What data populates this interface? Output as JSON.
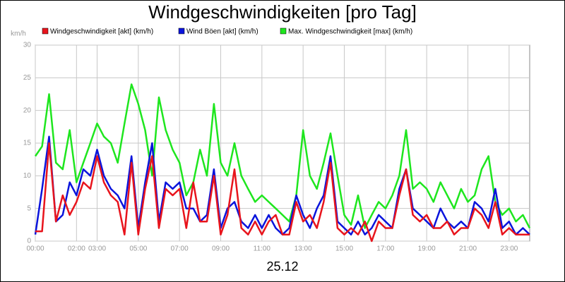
{
  "chart_data": {
    "type": "line",
    "title": "Windgeschwindigkeiten [pro Tag]",
    "y_label": "km/h",
    "x_label": "25.12",
    "x": [
      0,
      0.33,
      0.67,
      1,
      1.33,
      1.67,
      2,
      2.33,
      2.67,
      3,
      3.33,
      3.67,
      4,
      4.33,
      4.67,
      5,
      5.33,
      5.67,
      6,
      6.33,
      6.67,
      7,
      7.33,
      7.67,
      8,
      8.33,
      8.67,
      9,
      9.33,
      9.67,
      10,
      10.33,
      10.67,
      11,
      11.33,
      11.67,
      12,
      12.33,
      12.67,
      13,
      13.33,
      13.67,
      14,
      14.33,
      14.67,
      15,
      15.33,
      15.67,
      16,
      16.33,
      16.67,
      17,
      17.33,
      17.67,
      18,
      18.33,
      18.67,
      19,
      19.33,
      19.67,
      20,
      20.33,
      20.67,
      21,
      21.33,
      21.67,
      22,
      22.33,
      22.67,
      23,
      23.33,
      23.67,
      24
    ],
    "series": [
      {
        "name": "Windgeschwindigkeit [akt] (km/h)",
        "color": "#e8141c",
        "values": [
          1.5,
          1.5,
          15,
          3,
          7,
          4,
          6,
          9,
          8,
          13,
          9,
          7,
          6,
          1,
          12,
          1,
          8,
          13,
          2,
          8,
          7,
          8,
          2,
          9,
          3,
          3,
          10,
          1,
          4,
          11,
          2,
          1,
          3,
          1,
          3,
          4,
          1,
          1,
          6,
          3,
          4,
          2,
          6,
          12,
          2,
          1,
          2,
          1,
          3,
          0,
          3,
          2,
          2,
          7,
          11,
          4,
          3,
          4,
          2,
          2,
          3,
          1,
          2,
          2,
          5,
          4,
          2,
          6,
          1,
          2,
          1,
          1,
          1
        ]
      },
      {
        "name": "Wind Böen [akt] (km/h)",
        "color": "#0a14dc",
        "values": [
          1,
          8,
          16,
          3,
          4,
          9,
          7,
          11,
          10,
          14,
          10,
          8,
          7,
          5,
          13,
          2,
          9,
          15,
          3,
          9,
          8,
          9,
          5,
          5,
          3,
          4,
          11,
          2,
          5,
          6,
          3,
          2,
          4,
          2,
          4,
          2,
          1,
          2,
          7,
          4,
          2,
          5,
          7,
          13,
          3,
          2,
          1,
          3,
          1,
          2,
          4,
          3,
          2,
          8,
          11,
          5,
          4,
          3,
          2,
          5,
          3,
          2,
          3,
          2,
          6,
          5,
          3,
          8,
          2,
          3,
          1,
          2,
          1
        ]
      },
      {
        "name": "Max. Windgeschwindigkeit [max] (km/h)",
        "color": "#1ee61e",
        "values": [
          13,
          14.5,
          22.5,
          12,
          11,
          17,
          9,
          12,
          15,
          18,
          16,
          15,
          12,
          18,
          24,
          21,
          17,
          10,
          22,
          17,
          14,
          12,
          7,
          9,
          14,
          10,
          21,
          12,
          10,
          15,
          10,
          8,
          6,
          7,
          6,
          5,
          4,
          3,
          7,
          17,
          10,
          8,
          12,
          16.5,
          10,
          4,
          2.5,
          7,
          2,
          4,
          6,
          5,
          7,
          10,
          17,
          8,
          9,
          8,
          6,
          9,
          7,
          5,
          8,
          6,
          7,
          11,
          13,
          6,
          4,
          5,
          3,
          4,
          2
        ]
      }
    ],
    "xlim": [
      0,
      24
    ],
    "xticks": [
      {
        "value": 0,
        "label": "00:00"
      },
      {
        "value": 2,
        "label": "02:00"
      },
      {
        "value": 3,
        "label": "03:00"
      },
      {
        "value": 5,
        "label": "05:00"
      },
      {
        "value": 7,
        "label": "07:00"
      },
      {
        "value": 9,
        "label": "09:00"
      },
      {
        "value": 11,
        "label": "11:00"
      },
      {
        "value": 13,
        "label": "13:00"
      },
      {
        "value": 15,
        "label": "15:00"
      },
      {
        "value": 17,
        "label": "17:00"
      },
      {
        "value": 19,
        "label": "19:00"
      },
      {
        "value": 21,
        "label": "21:00"
      },
      {
        "value": 23,
        "label": "23:00"
      }
    ],
    "ylim": [
      0,
      30
    ],
    "yticks": [
      0,
      5,
      10,
      15,
      20,
      25,
      30
    ],
    "grid": true
  }
}
